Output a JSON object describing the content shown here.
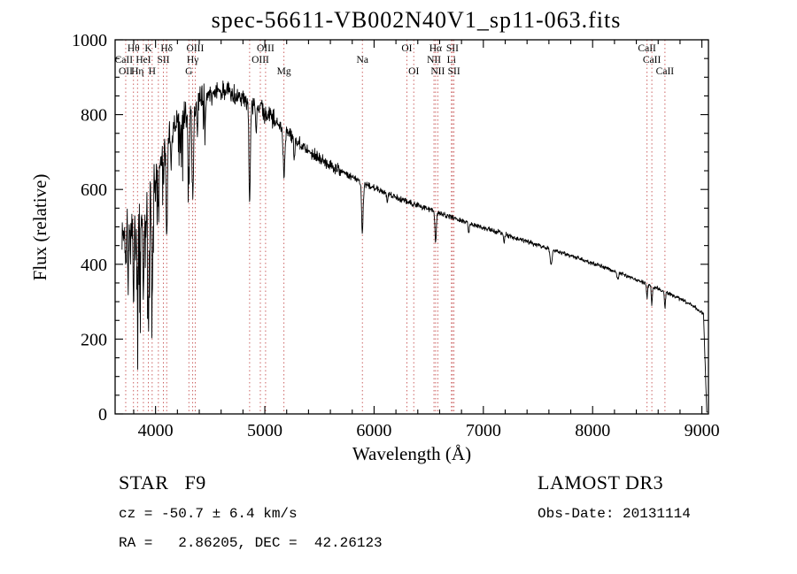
{
  "title": "spec-56611-VB002N40V1_sp11-063.fits",
  "chart_data": {
    "type": "line",
    "title": "spec-56611-VB002N40V1_sp11-063.fits",
    "xlabel": "Wavelength (Å)",
    "ylabel": "Flux (relative)",
    "xlim": [
      3630,
      9060
    ],
    "ylim": [
      0,
      1000
    ],
    "x_ticks": [
      4000,
      5000,
      6000,
      7000,
      8000,
      9000
    ],
    "x_minor_step": 200,
    "y_ticks": [
      0,
      200,
      400,
      600,
      800,
      1000
    ],
    "y_minor_step": 50,
    "grid": false,
    "legend": "none",
    "line_color": "#000000",
    "marker_color": "#c04040",
    "label_color": "#1a1a1a",
    "continuum": [
      [
        3693,
        480
      ],
      [
        3730,
        500
      ],
      [
        3780,
        520
      ],
      [
        3830,
        540
      ],
      [
        3880,
        560
      ],
      [
        3930,
        580
      ],
      [
        3980,
        620
      ],
      [
        4040,
        680
      ],
      [
        4100,
        720
      ],
      [
        4160,
        760
      ],
      [
        4240,
        790
      ],
      [
        4320,
        815
      ],
      [
        4400,
        835
      ],
      [
        4480,
        850
      ],
      [
        4560,
        860
      ],
      [
        4640,
        865
      ],
      [
        4720,
        858
      ],
      [
        4800,
        845
      ],
      [
        4880,
        832
      ],
      [
        4960,
        815
      ],
      [
        5040,
        795
      ],
      [
        5120,
        775
      ],
      [
        5200,
        755
      ],
      [
        5300,
        730
      ],
      [
        5400,
        705
      ],
      [
        5500,
        685
      ],
      [
        5600,
        665
      ],
      [
        5700,
        648
      ],
      [
        5800,
        632
      ],
      [
        5900,
        618
      ],
      [
        6000,
        605
      ],
      [
        6100,
        592
      ],
      [
        6200,
        580
      ],
      [
        6300,
        568
      ],
      [
        6400,
        557
      ],
      [
        6500,
        547
      ],
      [
        6600,
        536
      ],
      [
        6700,
        527
      ],
      [
        6800,
        517
      ],
      [
        6900,
        508
      ],
      [
        7000,
        498
      ],
      [
        7150,
        485
      ],
      [
        7300,
        470
      ],
      [
        7450,
        456
      ],
      [
        7600,
        442
      ],
      [
        7750,
        428
      ],
      [
        7900,
        413
      ],
      [
        8050,
        398
      ],
      [
        8200,
        382
      ],
      [
        8350,
        365
      ],
      [
        8500,
        347
      ],
      [
        8650,
        328
      ],
      [
        8800,
        308
      ],
      [
        8900,
        292
      ],
      [
        9000,
        272
      ],
      [
        9060,
        262
      ]
    ],
    "absorption_lines": [
      [
        3727,
        90,
        4
      ],
      [
        3750,
        120,
        4
      ],
      [
        3770,
        100,
        4
      ],
      [
        3798,
        220,
        5
      ],
      [
        3820,
        130,
        4
      ],
      [
        3835,
        230,
        5
      ],
      [
        3860,
        140,
        4
      ],
      [
        3889,
        260,
        6
      ],
      [
        3912,
        120,
        4
      ],
      [
        3934,
        330,
        6
      ],
      [
        3969,
        300,
        6
      ],
      [
        4026,
        120,
        5
      ],
      [
        4072,
        100,
        4
      ],
      [
        4102,
        230,
        6
      ],
      [
        4144,
        80,
        5
      ],
      [
        4227,
        70,
        4
      ],
      [
        4305,
        170,
        7
      ],
      [
        4340,
        250,
        7
      ],
      [
        4383,
        90,
        5
      ],
      [
        4455,
        60,
        5
      ],
      [
        4861,
        260,
        7
      ],
      [
        4920,
        60,
        5
      ],
      [
        5175,
        115,
        8
      ],
      [
        5270,
        50,
        6
      ],
      [
        5893,
        135,
        7
      ],
      [
        6122,
        25,
        5
      ],
      [
        6563,
        85,
        6
      ],
      [
        6867,
        30,
        5
      ],
      [
        7190,
        20,
        6
      ],
      [
        7620,
        40,
        9
      ],
      [
        8230,
        20,
        6
      ],
      [
        8498,
        35,
        5
      ],
      [
        8542,
        50,
        5
      ],
      [
        8662,
        45,
        5
      ]
    ],
    "noise_regions": [
      [
        3630,
        4000,
        65
      ],
      [
        4000,
        4450,
        50
      ],
      [
        4450,
        5100,
        32
      ],
      [
        5100,
        5700,
        20
      ],
      [
        5700,
        6500,
        11
      ],
      [
        6500,
        7500,
        8
      ],
      [
        7500,
        9100,
        7
      ]
    ],
    "spikes": [
      [
        3695,
        3995,
        0.18,
        260
      ],
      [
        3995,
        4460,
        0.08,
        150
      ]
    ],
    "noise_seed": 1337,
    "sample_start": 3693,
    "sample_end": 9055,
    "sample_step": 3,
    "cutoff": [
      9015,
      9045
    ],
    "lines": [
      3727,
      3798,
      3835,
      3889,
      3934,
      3969,
      4026,
      4072,
      4102,
      4305,
      4340,
      4363,
      4861,
      4959,
      5007,
      5175,
      5893,
      6300,
      6363,
      6548,
      6563,
      6583,
      6708,
      6717,
      6731,
      8498,
      8542,
      8662
    ],
    "line_labels": [
      {
        "wl": 3798,
        "row": 1,
        "text": "Hθ"
      },
      {
        "wl": 3934,
        "row": 1,
        "text": "K"
      },
      {
        "wl": 4102,
        "row": 1,
        "text": "Hδ"
      },
      {
        "wl": 4363,
        "row": 1,
        "text": "OIII"
      },
      {
        "wl": 5007,
        "row": 1,
        "text": "OIII"
      },
      {
        "wl": 6300,
        "row": 1,
        "text": "OI"
      },
      {
        "wl": 6563,
        "row": 1,
        "text": "Hα"
      },
      {
        "wl": 6717,
        "row": 1,
        "text": "SII"
      },
      {
        "wl": 8498,
        "row": 1,
        "text": "CaII"
      },
      {
        "wl": 3710,
        "row": 2,
        "text": "CaII"
      },
      {
        "wl": 3889,
        "row": 2,
        "text": "HeI"
      },
      {
        "wl": 4072,
        "row": 2,
        "text": "SII"
      },
      {
        "wl": 4340,
        "row": 2,
        "text": "Hγ"
      },
      {
        "wl": 4959,
        "row": 2,
        "text": "OIII"
      },
      {
        "wl": 5893,
        "row": 2,
        "text": "Na"
      },
      {
        "wl": 6548,
        "row": 2,
        "text": "NII"
      },
      {
        "wl": 6708,
        "row": 2,
        "text": "Li"
      },
      {
        "wl": 8542,
        "row": 2,
        "text": "CaII"
      },
      {
        "wl": 3727,
        "row": 3,
        "text": "OII"
      },
      {
        "wl": 3835,
        "row": 3,
        "text": "Hη"
      },
      {
        "wl": 3969,
        "row": 3,
        "text": "H"
      },
      {
        "wl": 4305,
        "row": 3,
        "text": "G"
      },
      {
        "wl": 5175,
        "row": 3,
        "text": "Mg"
      },
      {
        "wl": 6363,
        "row": 3,
        "text": "OI"
      },
      {
        "wl": 6583,
        "row": 3,
        "text": "NII"
      },
      {
        "wl": 6731,
        "row": 3,
        "text": "SII"
      },
      {
        "wl": 8662,
        "row": 3,
        "text": "CaII"
      }
    ]
  },
  "annotations": {
    "class_label": "STAR   F9",
    "survey": "LAMOST DR3",
    "cz": "cz = -50.7 ± 6.4 km/s",
    "obs_date": "Obs-Date: 20131114",
    "coords": "RA =   2.86205, DEC =  42.26123"
  }
}
